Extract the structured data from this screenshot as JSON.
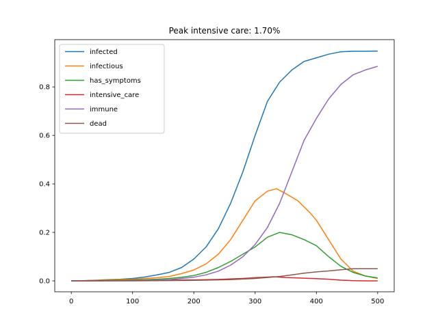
{
  "chart_data": {
    "type": "line",
    "title": "Peak intensive care: 1.70%",
    "xlabel": "",
    "ylabel": "",
    "xlim": [
      -27,
      527
    ],
    "ylim": [
      -0.045,
      0.995
    ],
    "xticks": [
      0,
      100,
      200,
      300,
      400,
      500
    ],
    "yticks": [
      0.0,
      0.2,
      0.4,
      0.6,
      0.8
    ],
    "xtick_labels": [
      "0",
      "100",
      "200",
      "300",
      "400",
      "500"
    ],
    "ytick_labels": [
      "0.0",
      "0.2",
      "0.4",
      "0.6",
      "0.8"
    ],
    "legend_position": "upper-left",
    "grid": false,
    "series": [
      {
        "name": "infected",
        "color": "#1f77b4",
        "points": [
          [
            0,
            0.0
          ],
          [
            20,
            0.001
          ],
          [
            40,
            0.003
          ],
          [
            60,
            0.005
          ],
          [
            80,
            0.007
          ],
          [
            100,
            0.01
          ],
          [
            120,
            0.016
          ],
          [
            140,
            0.025
          ],
          [
            160,
            0.035
          ],
          [
            180,
            0.055
          ],
          [
            200,
            0.09
          ],
          [
            220,
            0.14
          ],
          [
            240,
            0.215
          ],
          [
            260,
            0.32
          ],
          [
            280,
            0.45
          ],
          [
            300,
            0.6
          ],
          [
            320,
            0.74
          ],
          [
            340,
            0.82
          ],
          [
            360,
            0.87
          ],
          [
            380,
            0.905
          ],
          [
            400,
            0.92
          ],
          [
            420,
            0.935
          ],
          [
            440,
            0.945
          ],
          [
            460,
            0.947
          ],
          [
            480,
            0.947
          ],
          [
            500,
            0.948
          ]
        ]
      },
      {
        "name": "infectious",
        "color": "#ff7f0e",
        "points": [
          [
            0,
            0.0
          ],
          [
            20,
            0.001
          ],
          [
            40,
            0.002
          ],
          [
            60,
            0.004
          ],
          [
            80,
            0.006
          ],
          [
            100,
            0.007
          ],
          [
            120,
            0.01
          ],
          [
            140,
            0.013
          ],
          [
            160,
            0.018
          ],
          [
            180,
            0.03
          ],
          [
            200,
            0.045
          ],
          [
            220,
            0.07
          ],
          [
            240,
            0.11
          ],
          [
            260,
            0.17
          ],
          [
            280,
            0.25
          ],
          [
            300,
            0.33
          ],
          [
            320,
            0.37
          ],
          [
            335,
            0.38
          ],
          [
            350,
            0.36
          ],
          [
            370,
            0.33
          ],
          [
            390,
            0.28
          ],
          [
            400,
            0.25
          ],
          [
            420,
            0.17
          ],
          [
            440,
            0.09
          ],
          [
            460,
            0.04
          ],
          [
            480,
            0.02
          ],
          [
            500,
            0.01
          ]
        ]
      },
      {
        "name": "has_symptoms",
        "color": "#2ca02c",
        "points": [
          [
            0,
            0.0
          ],
          [
            20,
            0.0
          ],
          [
            40,
            0.001
          ],
          [
            60,
            0.002
          ],
          [
            80,
            0.003
          ],
          [
            100,
            0.004
          ],
          [
            120,
            0.005
          ],
          [
            140,
            0.007
          ],
          [
            160,
            0.01
          ],
          [
            180,
            0.015
          ],
          [
            200,
            0.022
          ],
          [
            220,
            0.035
          ],
          [
            240,
            0.055
          ],
          [
            260,
            0.08
          ],
          [
            280,
            0.11
          ],
          [
            300,
            0.14
          ],
          [
            320,
            0.18
          ],
          [
            340,
            0.2
          ],
          [
            360,
            0.19
          ],
          [
            380,
            0.17
          ],
          [
            400,
            0.145
          ],
          [
            420,
            0.1
          ],
          [
            440,
            0.06
          ],
          [
            460,
            0.035
          ],
          [
            480,
            0.02
          ],
          [
            500,
            0.012
          ]
        ]
      },
      {
        "name": "intensive_care",
        "color": "#d62728",
        "points": [
          [
            0,
            0.0
          ],
          [
            40,
            0.0
          ],
          [
            80,
            0.001
          ],
          [
            120,
            0.002
          ],
          [
            160,
            0.003
          ],
          [
            200,
            0.004
          ],
          [
            240,
            0.006
          ],
          [
            280,
            0.01
          ],
          [
            300,
            0.013
          ],
          [
            330,
            0.017
          ],
          [
            350,
            0.014
          ],
          [
            380,
            0.011
          ],
          [
            400,
            0.009
          ],
          [
            420,
            0.007
          ],
          [
            440,
            0.003
          ],
          [
            460,
            0.001
          ],
          [
            480,
            0.0
          ],
          [
            500,
            0.0
          ]
        ]
      },
      {
        "name": "immune",
        "color": "#9467bd",
        "points": [
          [
            0,
            0.0
          ],
          [
            40,
            0.0
          ],
          [
            80,
            0.001
          ],
          [
            120,
            0.002
          ],
          [
            160,
            0.005
          ],
          [
            180,
            0.01
          ],
          [
            200,
            0.015
          ],
          [
            220,
            0.025
          ],
          [
            240,
            0.04
          ],
          [
            260,
            0.065
          ],
          [
            280,
            0.1
          ],
          [
            300,
            0.15
          ],
          [
            320,
            0.22
          ],
          [
            340,
            0.32
          ],
          [
            360,
            0.45
          ],
          [
            380,
            0.58
          ],
          [
            400,
            0.67
          ],
          [
            420,
            0.75
          ],
          [
            440,
            0.81
          ],
          [
            460,
            0.85
          ],
          [
            480,
            0.87
          ],
          [
            500,
            0.885
          ]
        ]
      },
      {
        "name": "dead",
        "color": "#8c564b",
        "points": [
          [
            0,
            0.0
          ],
          [
            100,
            0.0
          ],
          [
            200,
            0.002
          ],
          [
            260,
            0.005
          ],
          [
            300,
            0.01
          ],
          [
            320,
            0.014
          ],
          [
            340,
            0.018
          ],
          [
            360,
            0.025
          ],
          [
            380,
            0.032
          ],
          [
            400,
            0.037
          ],
          [
            420,
            0.041
          ],
          [
            440,
            0.046
          ],
          [
            460,
            0.05
          ],
          [
            480,
            0.05
          ],
          [
            500,
            0.05
          ]
        ]
      }
    ]
  }
}
